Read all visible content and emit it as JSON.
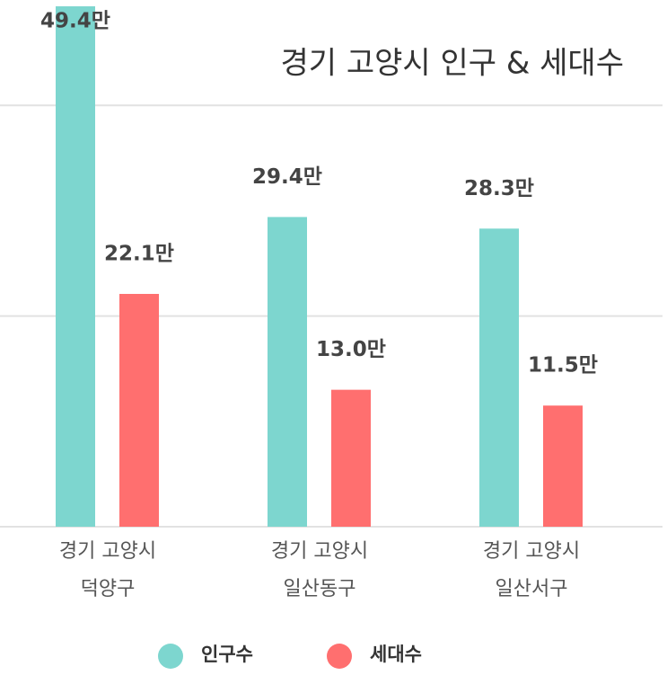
{
  "chart_data": {
    "type": "bar",
    "title": "경기 고양시 인구 & 세대수",
    "categories": [
      [
        "경기 고양시",
        "덕양구"
      ],
      [
        "경기 고양시",
        "일산동구"
      ],
      [
        "경기 고양시",
        "일산서구"
      ]
    ],
    "series": [
      {
        "name": "인구수",
        "color": "#7dd6cf",
        "values": [
          49.4,
          29.4,
          28.3
        ],
        "value_labels": [
          "49.4만",
          "29.4만",
          "28.3만"
        ]
      },
      {
        "name": "세대수",
        "color": "#ff6f6f",
        "values": [
          22.1,
          13.0,
          11.5
        ],
        "value_labels": [
          "22.1만",
          "13.0만",
          "11.5만"
        ]
      }
    ],
    "ylim": [
      0,
      50
    ],
    "yticks": [
      0,
      20,
      40
    ],
    "grid": true
  }
}
